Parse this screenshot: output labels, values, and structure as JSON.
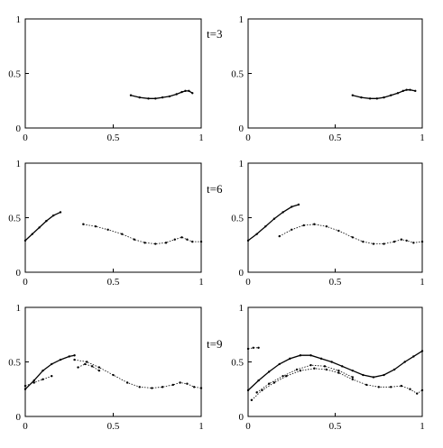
{
  "figure": {
    "time_labels": [
      "t=3",
      "t=6",
      "t=9"
    ]
  },
  "chart_data": [
    {
      "type": "scatter",
      "title": "",
      "xlim": [
        0,
        1
      ],
      "ylim": [
        0,
        1
      ],
      "xticks": [
        "0",
        "0.5",
        "1"
      ],
      "yticks": [
        "0",
        "0.5",
        "1"
      ],
      "grid": false,
      "series": [
        {
          "x": [
            0.6,
            0.65,
            0.7,
            0.74,
            0.78,
            0.82,
            0.86,
            0.89,
            0.91,
            0.93,
            0.95
          ],
          "y": [
            0.3,
            0.28,
            0.27,
            0.27,
            0.28,
            0.29,
            0.31,
            0.33,
            0.34,
            0.34,
            0.32
          ]
        }
      ]
    },
    {
      "type": "scatter",
      "title": "",
      "xlim": [
        0,
        1
      ],
      "ylim": [
        0,
        1
      ],
      "xticks": [
        "0",
        "0.5",
        "1"
      ],
      "yticks": [
        "0",
        "0.5",
        "1"
      ],
      "grid": false,
      "series": [
        {
          "x": [
            0.6,
            0.65,
            0.7,
            0.74,
            0.78,
            0.82,
            0.86,
            0.89,
            0.91,
            0.93,
            0.96
          ],
          "y": [
            0.3,
            0.28,
            0.27,
            0.27,
            0.28,
            0.3,
            0.32,
            0.34,
            0.35,
            0.35,
            0.34
          ]
        }
      ]
    },
    {
      "type": "scatter",
      "title": "",
      "xlim": [
        0,
        1
      ],
      "ylim": [
        0,
        1
      ],
      "xticks": [
        "0",
        "0.5",
        "1"
      ],
      "yticks": [
        "0",
        "0.5",
        "1"
      ],
      "grid": false,
      "series": [
        {
          "x": [
            0.0,
            0.04,
            0.08,
            0.12,
            0.16,
            0.2
          ],
          "y": [
            0.29,
            0.35,
            0.41,
            0.47,
            0.52,
            0.55
          ]
        },
        {
          "x": [
            0.33,
            0.4,
            0.47,
            0.55,
            0.62,
            0.68,
            0.74,
            0.8,
            0.85,
            0.89,
            0.92,
            0.95,
            1.0
          ],
          "y": [
            0.44,
            0.42,
            0.39,
            0.35,
            0.3,
            0.27,
            0.26,
            0.27,
            0.3,
            0.32,
            0.3,
            0.28,
            0.28
          ]
        }
      ]
    },
    {
      "type": "scatter",
      "title": "",
      "xlim": [
        0,
        1
      ],
      "ylim": [
        0,
        1
      ],
      "xticks": [
        "0",
        "0.5",
        "1"
      ],
      "yticks": [
        "0",
        "0.5",
        "1"
      ],
      "grid": false,
      "series": [
        {
          "x": [
            0.0,
            0.05,
            0.1,
            0.15,
            0.2,
            0.25,
            0.29
          ],
          "y": [
            0.29,
            0.35,
            0.42,
            0.49,
            0.55,
            0.6,
            0.62
          ]
        },
        {
          "x": [
            0.18,
            0.25,
            0.32,
            0.38,
            0.45,
            0.52,
            0.6,
            0.66,
            0.72,
            0.78,
            0.84,
            0.88,
            0.91,
            0.95,
            1.0
          ],
          "y": [
            0.33,
            0.39,
            0.43,
            0.44,
            0.42,
            0.38,
            0.32,
            0.28,
            0.26,
            0.26,
            0.28,
            0.3,
            0.29,
            0.27,
            0.28
          ]
        }
      ]
    },
    {
      "type": "scatter",
      "title": "",
      "xlim": [
        0,
        1
      ],
      "ylim": [
        0,
        1
      ],
      "xticks": [
        "0",
        "0.5",
        "1"
      ],
      "yticks": [
        "0",
        "0.5",
        "1"
      ],
      "grid": false,
      "series": [
        {
          "x": [
            0.0,
            0.05,
            0.1,
            0.15,
            0.2,
            0.25,
            0.28
          ],
          "y": [
            0.25,
            0.33,
            0.42,
            0.48,
            0.52,
            0.55,
            0.56
          ]
        },
        {
          "x": [
            0.28,
            0.35,
            0.42,
            0.5,
            0.58,
            0.65,
            0.72,
            0.78,
            0.84,
            0.88,
            0.92,
            0.96,
            1.0
          ],
          "y": [
            0.52,
            0.5,
            0.45,
            0.38,
            0.31,
            0.27,
            0.26,
            0.27,
            0.29,
            0.31,
            0.3,
            0.27,
            0.26
          ]
        },
        {
          "x": [
            0.0,
            0.05,
            0.1,
            0.15
          ],
          "y": [
            0.28,
            0.31,
            0.34,
            0.37
          ]
        },
        {
          "x": [
            0.3,
            0.34,
            0.38,
            0.42
          ],
          "y": [
            0.45,
            0.48,
            0.46,
            0.42
          ]
        }
      ]
    },
    {
      "type": "scatter",
      "title": "",
      "xlim": [
        0,
        1
      ],
      "ylim": [
        0,
        1
      ],
      "xticks": [
        "0",
        "0.5",
        "1"
      ],
      "yticks": [
        "0",
        "0.5",
        "1"
      ],
      "grid": false,
      "series": [
        {
          "x": [
            0.0,
            0.06,
            0.12,
            0.18,
            0.24,
            0.3,
            0.36,
            0.42,
            0.48,
            0.54,
            0.6,
            0.66,
            0.72,
            0.78,
            0.84,
            0.9,
            0.95,
            1.0
          ],
          "y": [
            0.24,
            0.33,
            0.41,
            0.48,
            0.53,
            0.56,
            0.56,
            0.53,
            0.5,
            0.46,
            0.42,
            0.38,
            0.36,
            0.38,
            0.43,
            0.5,
            0.55,
            0.6
          ]
        },
        {
          "x": [
            0.02,
            0.08,
            0.15,
            0.22,
            0.3,
            0.38,
            0.45,
            0.52,
            0.6,
            0.68,
            0.75,
            0.82,
            0.88,
            0.93,
            0.97,
            1.0
          ],
          "y": [
            0.15,
            0.24,
            0.31,
            0.37,
            0.42,
            0.44,
            0.43,
            0.4,
            0.34,
            0.29,
            0.27,
            0.27,
            0.28,
            0.25,
            0.21,
            0.24
          ]
        },
        {
          "x": [
            0.05,
            0.12,
            0.2,
            0.28,
            0.36,
            0.44,
            0.52,
            0.6
          ],
          "y": [
            0.22,
            0.3,
            0.37,
            0.43,
            0.47,
            0.46,
            0.42,
            0.36
          ]
        },
        {
          "x": [
            0.0,
            0.03,
            0.06
          ],
          "y": [
            0.62,
            0.63,
            0.63
          ]
        }
      ]
    }
  ]
}
